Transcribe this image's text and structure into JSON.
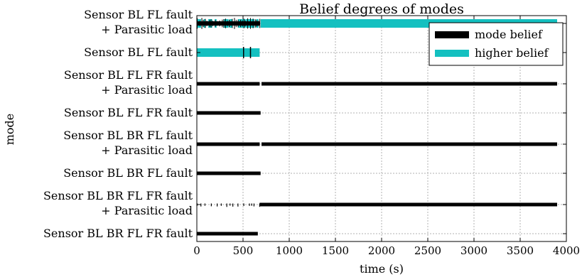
{
  "chart_data": {
    "type": "scatter",
    "title": "Belief degrees of modes",
    "xlabel": "time (s)",
    "ylabel": "mode",
    "xlim": [
      0,
      4000
    ],
    "xticks": [
      0,
      500,
      1000,
      1500,
      2000,
      2500,
      3000,
      3500,
      4000
    ],
    "grid": true,
    "legend_position": "top-right",
    "modes": [
      {
        "line1": "Sensor BL FL fault",
        "line2": "+ Parasitic load"
      },
      {
        "line1": "Sensor BL FL fault",
        "line2": ""
      },
      {
        "line1": "Sensor BL FL FR fault",
        "line2": "+ Parasitic load"
      },
      {
        "line1": "Sensor BL FL FR fault",
        "line2": ""
      },
      {
        "line1": "Sensor BL BR FL fault",
        "line2": "+ Parasitic load"
      },
      {
        "line1": "Sensor BL BR FL fault",
        "line2": ""
      },
      {
        "line1": "Sensor BL BR FL FR fault",
        "line2": "+ Parasitic load"
      },
      {
        "line1": "Sensor BL BR FL FR fault",
        "line2": ""
      }
    ],
    "series": [
      {
        "name": "mode belief",
        "color": "#000000",
        "segments": [
          {
            "mode": 0,
            "x": [
              0,
              680
            ],
            "style": "dense-noisy"
          },
          {
            "mode": 1,
            "x": [
              500,
              700
            ],
            "style": "sparse"
          },
          {
            "mode": 2,
            "x": [
              0,
              680
            ],
            "style": "solid"
          },
          {
            "mode": 2,
            "x": [
              700,
              3900
            ],
            "style": "solid"
          },
          {
            "mode": 3,
            "x": [
              0,
              690
            ],
            "style": "solid"
          },
          {
            "mode": 4,
            "x": [
              0,
              680
            ],
            "style": "solid"
          },
          {
            "mode": 4,
            "x": [
              700,
              3900
            ],
            "style": "solid"
          },
          {
            "mode": 5,
            "x": [
              0,
              690
            ],
            "style": "solid"
          },
          {
            "mode": 6,
            "x": [
              0,
              680
            ],
            "style": "dotted"
          },
          {
            "mode": 6,
            "x": [
              680,
              3900
            ],
            "style": "solid"
          },
          {
            "mode": 7,
            "x": [
              0,
              660
            ],
            "style": "solid"
          }
        ]
      },
      {
        "name": "higher belief",
        "color": "#14c0c0",
        "segments": [
          {
            "mode": 0,
            "x": [
              690,
              3900
            ],
            "style": "solid"
          },
          {
            "mode": 0,
            "x": [
              0,
              660
            ],
            "style": "patchy"
          },
          {
            "mode": 1,
            "x": [
              0,
              680
            ],
            "style": "solid"
          }
        ]
      }
    ]
  }
}
